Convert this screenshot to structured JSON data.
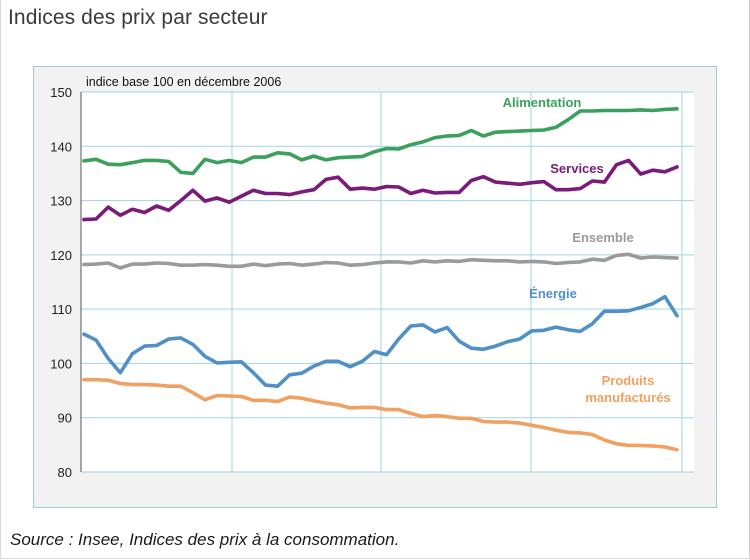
{
  "page": {
    "title": "Indices des prix par secteur",
    "source": "Source : Insee, Indices des prix à la consommation."
  },
  "chart_data": {
    "type": "line",
    "title": "",
    "subtitle": "indice base 100 en décembre 2006",
    "xlabel": "",
    "ylabel": "",
    "ylim": [
      80,
      150
    ],
    "yticks": [
      80,
      90,
      100,
      110,
      120,
      130,
      140,
      150
    ],
    "grid": true,
    "legend": "inline labels near series",
    "series": [
      {
        "name": "Alimentation",
        "color": "#3aa05c",
        "values": [
          137.3,
          137.6,
          136.7,
          136.6,
          137.0,
          137.4,
          137.4,
          137.2,
          135.2,
          135.0,
          137.6,
          137.0,
          137.4,
          137.0,
          138.0,
          138.0,
          138.8,
          138.6,
          137.5,
          138.2,
          137.5,
          137.9,
          138.0,
          138.1,
          139.0,
          139.6,
          139.5,
          140.3,
          140.8,
          141.6,
          141.9,
          142.0,
          142.9,
          141.9,
          142.6,
          142.7,
          142.8,
          142.9,
          143.0,
          143.5,
          144.9,
          146.5,
          146.5,
          146.6,
          146.6,
          146.6,
          146.7,
          146.6,
          146.8,
          146.9
        ]
      },
      {
        "name": "Services",
        "color": "#7a1a7a",
        "values": [
          126.5,
          126.6,
          128.8,
          127.3,
          128.4,
          127.8,
          129.0,
          128.2,
          130.0,
          131.9,
          129.9,
          130.5,
          129.7,
          130.8,
          131.9,
          131.3,
          131.3,
          131.1,
          131.6,
          132.0,
          133.9,
          134.3,
          132.1,
          132.3,
          132.1,
          132.6,
          132.5,
          131.3,
          131.9,
          131.4,
          131.5,
          131.5,
          133.7,
          134.4,
          133.4,
          133.2,
          133.0,
          133.3,
          133.5,
          132.0,
          132.0,
          132.2,
          133.6,
          133.4,
          136.6,
          137.4,
          134.9,
          135.6,
          135.3,
          136.2
        ]
      },
      {
        "name": "Ensemble",
        "color": "#9a9a9a",
        "values": [
          118.2,
          118.3,
          118.5,
          117.6,
          118.3,
          118.3,
          118.5,
          118.4,
          118.1,
          118.1,
          118.2,
          118.1,
          117.9,
          117.9,
          118.3,
          118.0,
          118.3,
          118.4,
          118.1,
          118.3,
          118.6,
          118.5,
          118.1,
          118.2,
          118.5,
          118.7,
          118.7,
          118.5,
          118.9,
          118.7,
          118.9,
          118.8,
          119.1,
          119.0,
          118.9,
          118.9,
          118.7,
          118.8,
          118.7,
          118.4,
          118.6,
          118.7,
          119.2,
          119.0,
          119.9,
          120.1,
          119.4,
          119.6,
          119.5,
          119.4
        ]
      },
      {
        "name": "Énergie",
        "color": "#5090c6",
        "values": [
          105.4,
          104.3,
          100.9,
          98.3,
          101.8,
          103.2,
          103.3,
          104.5,
          104.7,
          103.5,
          101.3,
          100.1,
          100.2,
          100.3,
          98.3,
          96.0,
          95.8,
          97.9,
          98.2,
          99.5,
          100.4,
          100.4,
          99.4,
          100.4,
          102.2,
          101.6,
          104.5,
          106.9,
          107.1,
          105.8,
          106.6,
          104.1,
          102.8,
          102.6,
          103.2,
          104.0,
          104.5,
          106.0,
          106.1,
          106.7,
          106.2,
          105.9,
          107.3,
          109.6,
          109.6,
          109.7,
          110.3,
          111.0,
          112.3,
          108.8
        ]
      },
      {
        "name": "Produits manufacturés",
        "color": "#f0a060",
        "values": [
          97.0,
          97.0,
          96.9,
          96.3,
          96.1,
          96.1,
          96.0,
          95.8,
          95.8,
          94.6,
          93.3,
          94.1,
          94.0,
          93.9,
          93.2,
          93.2,
          93.0,
          93.8,
          93.6,
          93.1,
          92.7,
          92.4,
          91.8,
          91.9,
          91.9,
          91.5,
          91.5,
          90.8,
          90.2,
          90.4,
          90.2,
          89.9,
          89.9,
          89.3,
          89.2,
          89.2,
          89.0,
          88.6,
          88.2,
          87.7,
          87.3,
          87.2,
          86.9,
          85.9,
          85.2,
          84.9,
          84.9,
          84.8,
          84.6,
          84.1
        ]
      }
    ]
  }
}
